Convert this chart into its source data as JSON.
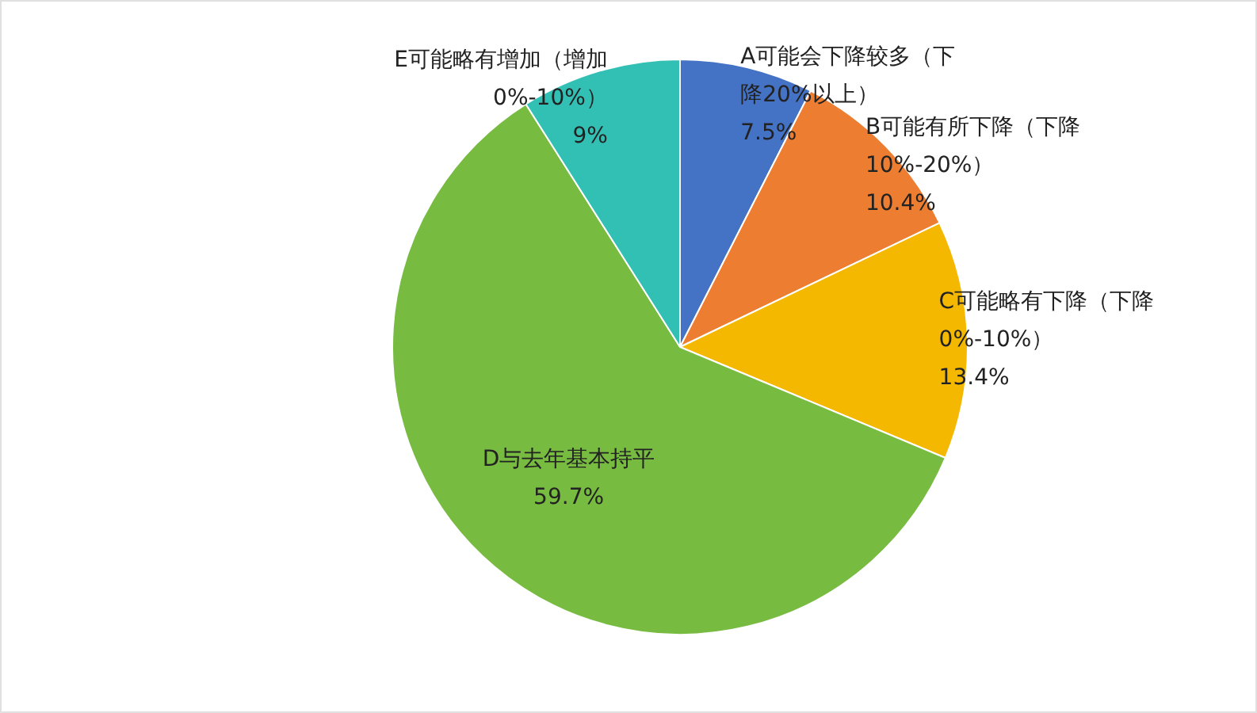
{
  "chart_data": {
    "type": "pie",
    "categories": [
      "A可能会下降较多（下降20%以上）",
      "B可能有所下降（下降10%-20%）",
      "C可能略有下降（下降0%-10%）",
      "D与去年基本持平",
      "E可能略有增加（增加0%-10%）"
    ],
    "values": [
      7.5,
      10.4,
      13.4,
      59.7,
      9
    ],
    "colors": [
      "#4472c4",
      "#ed7d31",
      "#f5b800",
      "#77bb41",
      "#33c0b4"
    ],
    "value_labels": [
      "7.5%",
      "10.4%",
      "13.4%",
      "59.7%",
      "9%"
    ],
    "legend": false
  }
}
